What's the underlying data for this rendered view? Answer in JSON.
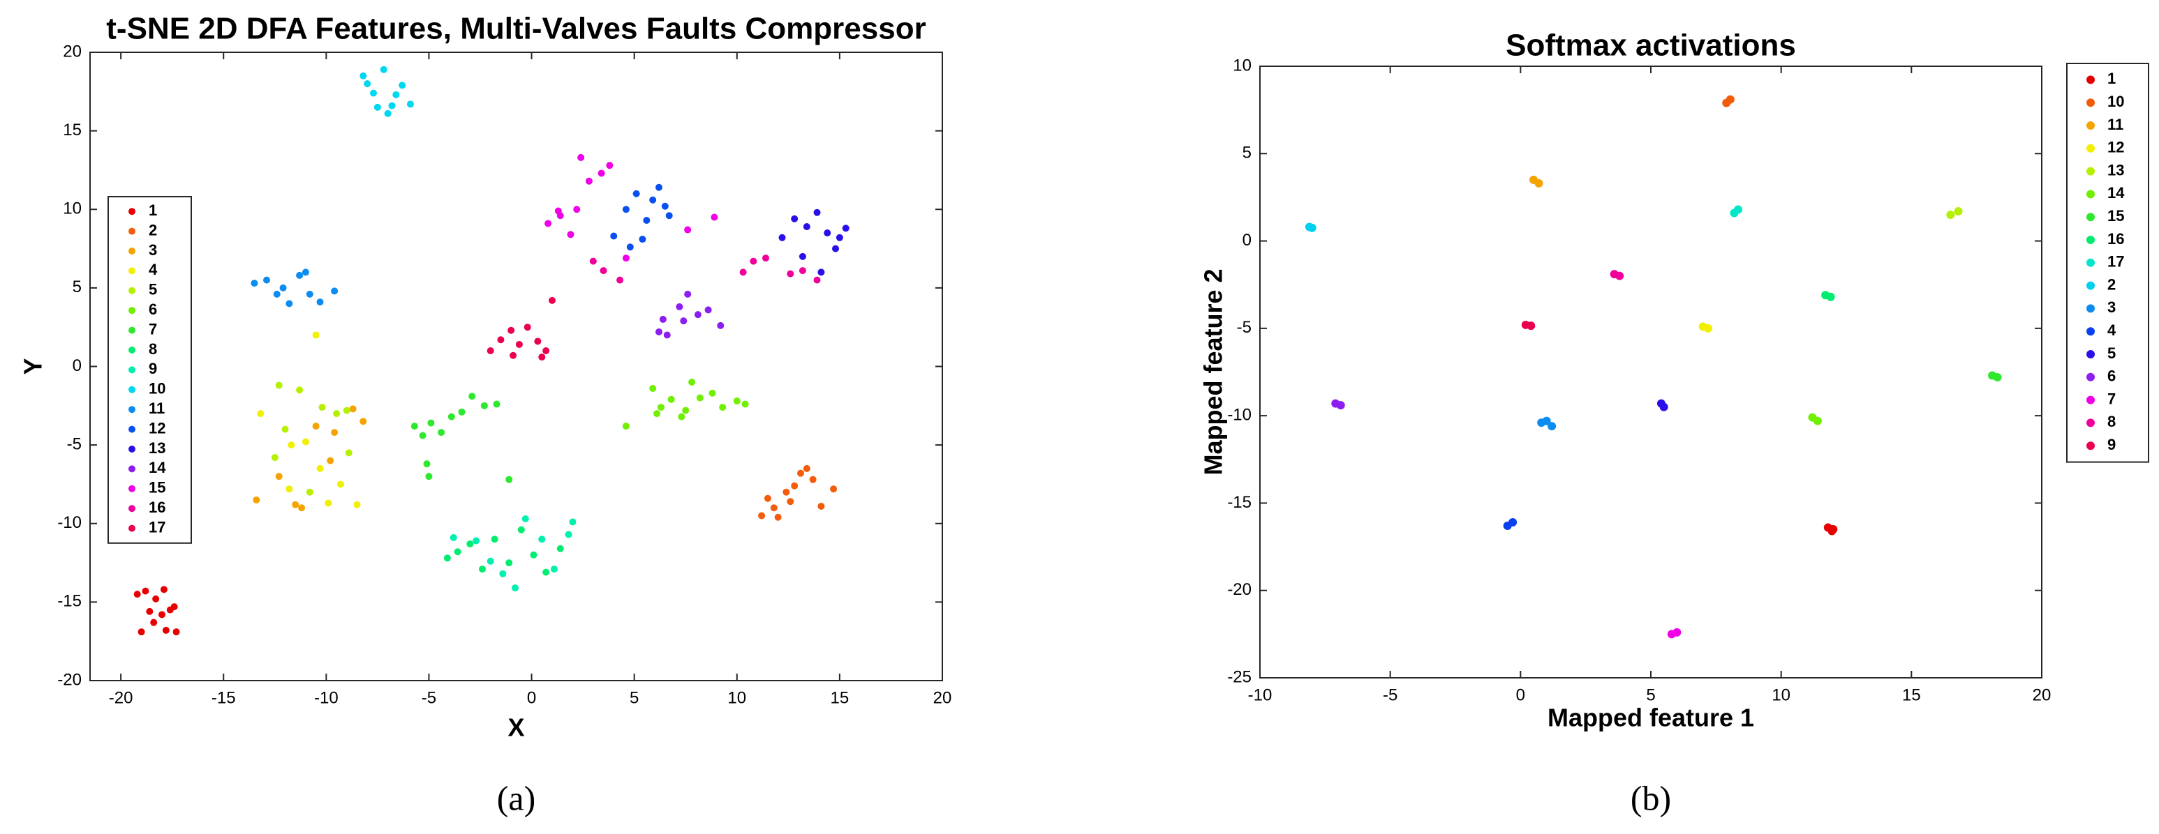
{
  "chart_data": [
    {
      "type": "scatter",
      "title": "t-SNE 2D DFA Features, Multi-Valves Faults Compressor",
      "x_label": "X",
      "y_label": "Y",
      "caption": "(a)",
      "xlim": [
        -21.5,
        20
      ],
      "ylim": [
        -20,
        20
      ],
      "xticks": [
        -20,
        -15,
        -10,
        -5,
        0,
        5,
        10,
        15,
        20
      ],
      "yticks": [
        -20,
        -15,
        -10,
        -5,
        0,
        5,
        10,
        15,
        20
      ],
      "legend": "left",
      "series": [
        {
          "name": "1",
          "color": "#e60000",
          "x": [
            -19.2,
            -18.8,
            -18.3,
            -17.9,
            -17.4,
            -18.6,
            -18.0,
            -17.6,
            -19.0,
            -18.4,
            -17.8,
            -17.3
          ],
          "values": [
            -14.5,
            -14.3,
            -14.8,
            -14.2,
            -15.3,
            -15.6,
            -15.8,
            -15.5,
            -16.9,
            -16.3,
            -16.8,
            -16.9
          ]
        },
        {
          "name": "2",
          "color": "#f25c0a",
          "x": [
            11.2,
            11.5,
            12.0,
            12.4,
            12.8,
            13.1,
            13.4,
            13.7,
            14.1,
            14.7,
            11.8,
            12.6
          ],
          "values": [
            -9.5,
            -8.4,
            -9.6,
            -8.0,
            -7.6,
            -6.8,
            -6.5,
            -7.2,
            -8.9,
            -7.8,
            -9.0,
            -8.6
          ]
        },
        {
          "name": "3",
          "color": "#f5a300",
          "x": [
            -13.4,
            -11.5,
            -10.5,
            -9.6,
            -8.7,
            -8.2,
            -11.2,
            -9.8,
            -12.3
          ],
          "values": [
            -8.5,
            -8.8,
            -3.8,
            -4.2,
            -2.7,
            -3.5,
            -9.0,
            -6.0,
            -7.0
          ]
        },
        {
          "name": "4",
          "color": "#f0f000",
          "x": [
            -13.2,
            -11.7,
            -11.0,
            -10.3,
            -9.9,
            -9.3,
            -8.5,
            -10.5,
            -11.8
          ],
          "values": [
            -3.0,
            -5.0,
            -4.8,
            -6.5,
            -8.7,
            -7.5,
            -8.8,
            2.0,
            -7.8
          ]
        },
        {
          "name": "5",
          "color": "#b5f000",
          "x": [
            -12.3,
            -12.0,
            -11.3,
            -10.2,
            -9.5,
            -8.9,
            -10.8,
            -12.5,
            -9.0
          ],
          "values": [
            -1.2,
            -4.0,
            -1.5,
            -2.6,
            -3.0,
            -5.5,
            -8.0,
            -5.8,
            -2.8
          ]
        },
        {
          "name": "6",
          "color": "#70f000",
          "x": [
            4.6,
            5.9,
            6.3,
            6.8,
            7.3,
            7.8,
            8.2,
            8.8,
            9.3,
            10.0,
            10.4,
            6.1,
            7.5
          ],
          "values": [
            -3.8,
            -1.4,
            -2.6,
            -2.1,
            -3.2,
            -1.0,
            -2.0,
            -1.7,
            -2.6,
            -2.2,
            -2.4,
            -3.0,
            -2.8
          ]
        },
        {
          "name": "7",
          "color": "#2ee82e",
          "x": [
            -5.7,
            -5.3,
            -4.9,
            -4.4,
            -3.9,
            -3.4,
            -2.9,
            -2.3,
            -1.7,
            -5.1,
            -5.0,
            -1.1
          ],
          "values": [
            -3.8,
            -4.4,
            -3.6,
            -4.2,
            -3.2,
            -2.9,
            -1.9,
            -2.5,
            -2.4,
            -6.2,
            -7.0,
            -7.2
          ]
        },
        {
          "name": "8",
          "color": "#00ed70",
          "x": [
            -4.1,
            -3.6,
            -3.0,
            -2.4,
            -1.8,
            -1.1,
            -0.5,
            0.1,
            0.7,
            1.4
          ],
          "values": [
            -12.2,
            -11.8,
            -11.3,
            -12.9,
            -11.0,
            -12.5,
            -10.4,
            -12.0,
            -13.1,
            -11.6
          ]
        },
        {
          "name": "9",
          "color": "#00f0b0",
          "x": [
            -3.8,
            -2.7,
            -2.0,
            -1.4,
            -0.3,
            0.5,
            1.1,
            1.8,
            2.0,
            -0.8
          ],
          "values": [
            -10.9,
            -11.1,
            -12.4,
            -13.2,
            -9.7,
            -11.0,
            -12.9,
            -10.7,
            -9.9,
            -14.1
          ]
        },
        {
          "name": "10",
          "color": "#00d8f0",
          "x": [
            -8.2,
            -7.7,
            -7.2,
            -6.8,
            -6.3,
            -5.9,
            -7.5,
            -6.6,
            -8.0,
            -7.0
          ],
          "values": [
            18.5,
            17.4,
            18.9,
            16.6,
            17.9,
            16.7,
            16.5,
            17.3,
            18.0,
            16.1
          ]
        },
        {
          "name": "11",
          "color": "#0a8cf0",
          "x": [
            -13.5,
            -12.9,
            -12.4,
            -11.8,
            -11.3,
            -10.8,
            -10.3,
            -9.6,
            -11.0,
            -12.1
          ],
          "values": [
            5.3,
            5.5,
            4.6,
            4.0,
            5.8,
            4.6,
            4.1,
            4.8,
            6.0,
            5.0
          ]
        },
        {
          "name": "12",
          "color": "#0a50f0",
          "x": [
            4.0,
            4.6,
            5.1,
            5.6,
            6.2,
            6.7,
            4.8,
            5.9,
            5.4,
            6.5
          ],
          "values": [
            8.3,
            10.0,
            11.0,
            9.3,
            11.4,
            9.6,
            7.6,
            10.6,
            8.1,
            10.2
          ]
        },
        {
          "name": "13",
          "color": "#2a10e8",
          "x": [
            12.2,
            12.8,
            13.4,
            13.9,
            14.4,
            15.0,
            15.3,
            13.2,
            14.1,
            14.8
          ],
          "values": [
            8.2,
            9.4,
            8.9,
            9.8,
            8.5,
            8.2,
            8.8,
            7.0,
            6.0,
            7.5
          ]
        },
        {
          "name": "14",
          "color": "#8c1ef0",
          "x": [
            6.2,
            6.6,
            7.2,
            7.6,
            8.1,
            8.6,
            9.2,
            6.4,
            7.4
          ],
          "values": [
            2.2,
            2.0,
            3.8,
            4.6,
            3.3,
            3.6,
            2.6,
            3.0,
            2.9
          ]
        },
        {
          "name": "15",
          "color": "#f000e6",
          "x": [
            0.8,
            1.3,
            1.9,
            2.4,
            2.8,
            3.4,
            3.8,
            2.2,
            7.6,
            8.9,
            4.6,
            1.4
          ],
          "values": [
            9.1,
            9.9,
            8.4,
            13.3,
            11.8,
            12.3,
            12.8,
            10.0,
            8.7,
            9.5,
            6.9,
            9.6
          ]
        },
        {
          "name": "16",
          "color": "#f0009a",
          "x": [
            3.0,
            3.5,
            4.3,
            10.3,
            10.8,
            11.4,
            12.6,
            13.2,
            13.9
          ],
          "values": [
            6.7,
            6.1,
            5.5,
            6.0,
            6.7,
            6.9,
            5.9,
            6.1,
            5.5
          ]
        },
        {
          "name": "17",
          "color": "#eb0050",
          "x": [
            -2.0,
            -1.5,
            -1.0,
            -0.6,
            -0.2,
            0.3,
            0.7,
            1.0,
            -0.9,
            0.5
          ],
          "values": [
            1.0,
            1.7,
            2.3,
            1.4,
            2.5,
            1.6,
            1.0,
            4.2,
            0.7,
            0.6
          ]
        }
      ]
    },
    {
      "type": "scatter",
      "title": "Softmax activations",
      "x_label": "Mapped feature 1",
      "y_label": "Mapped feature 2",
      "caption": "(b)",
      "xlim": [
        -10,
        20
      ],
      "ylim": [
        -25,
        10
      ],
      "xticks": [
        -10,
        -5,
        0,
        5,
        10,
        15,
        20
      ],
      "yticks": [
        -25,
        -20,
        -15,
        -10,
        -5,
        0,
        5,
        10
      ],
      "legend": "outside right",
      "series": [
        {
          "name": "1",
          "color": "#e60000",
          "x": [
            11.8,
            11.95,
            12.0
          ],
          "values": [
            -16.4,
            -16.6,
            -16.5
          ]
        },
        {
          "name": "10",
          "color": "#f25c0a",
          "x": [
            7.9,
            8.05
          ],
          "values": [
            7.9,
            8.1
          ]
        },
        {
          "name": "11",
          "color": "#f5a300",
          "x": [
            0.5,
            0.7
          ],
          "values": [
            3.5,
            3.3
          ]
        },
        {
          "name": "12",
          "color": "#f0f000",
          "x": [
            7.0,
            7.2
          ],
          "values": [
            -4.9,
            -5.0
          ]
        },
        {
          "name": "13",
          "color": "#b5f000",
          "x": [
            16.5,
            16.8
          ],
          "values": [
            1.5,
            1.7
          ]
        },
        {
          "name": "14",
          "color": "#70f000",
          "x": [
            11.2,
            11.4
          ],
          "values": [
            -10.1,
            -10.3
          ]
        },
        {
          "name": "15",
          "color": "#2ee82e",
          "x": [
            18.1,
            18.3
          ],
          "values": [
            -7.7,
            -7.8
          ]
        },
        {
          "name": "16",
          "color": "#00ed70",
          "x": [
            11.7,
            11.9
          ],
          "values": [
            -3.1,
            -3.2
          ]
        },
        {
          "name": "17",
          "color": "#00e8c8",
          "x": [
            8.2,
            8.35
          ],
          "values": [
            1.6,
            1.8
          ]
        },
        {
          "name": "2",
          "color": "#00d0f0",
          "x": [
            -8.1,
            -8.0
          ],
          "values": [
            0.8,
            0.75
          ]
        },
        {
          "name": "3",
          "color": "#0a8cf0",
          "x": [
            0.8,
            1.0,
            1.2
          ],
          "values": [
            -10.4,
            -10.3,
            -10.6
          ]
        },
        {
          "name": "4",
          "color": "#0a40f0",
          "x": [
            -0.5,
            -0.3
          ],
          "values": [
            -16.3,
            -16.1
          ]
        },
        {
          "name": "5",
          "color": "#2a10e8",
          "x": [
            5.4,
            5.5
          ],
          "values": [
            -9.3,
            -9.5
          ]
        },
        {
          "name": "6",
          "color": "#8c1ef0",
          "x": [
            -7.1,
            -6.9
          ],
          "values": [
            -9.3,
            -9.4
          ]
        },
        {
          "name": "7",
          "color": "#f000e6",
          "x": [
            5.8,
            6.0
          ],
          "values": [
            -22.5,
            -22.4
          ]
        },
        {
          "name": "8",
          "color": "#f0009a",
          "x": [
            3.6,
            3.8
          ],
          "values": [
            -1.9,
            -2.0
          ]
        },
        {
          "name": "9",
          "color": "#eb0050",
          "x": [
            0.2,
            0.4
          ],
          "values": [
            -4.8,
            -4.85
          ]
        }
      ]
    }
  ]
}
